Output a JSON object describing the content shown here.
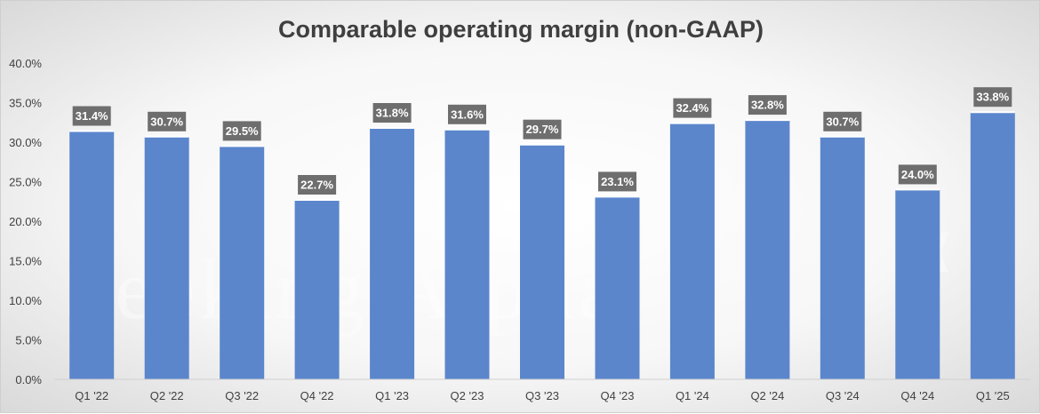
{
  "chart_data": {
    "type": "bar",
    "title": "Comparable operating margin (non-GAAP)",
    "categories": [
      "Q1 '22",
      "Q2 '22",
      "Q3 '22",
      "Q4 '22",
      "Q1 '23",
      "Q2 '23",
      "Q3 '23",
      "Q4 '23",
      "Q1 '24",
      "Q2 '24",
      "Q3 '24",
      "Q4 '24",
      "Q1 '25"
    ],
    "values": [
      31.4,
      30.7,
      29.5,
      22.7,
      31.8,
      31.6,
      29.7,
      23.1,
      32.4,
      32.8,
      30.7,
      24.0,
      33.8
    ],
    "data_labels": [
      "31.4%",
      "30.7%",
      "29.5%",
      "22.7%",
      "31.8%",
      "31.6%",
      "29.7%",
      "23.1%",
      "32.4%",
      "32.8%",
      "30.7%",
      "24.0%",
      "33.8%"
    ],
    "ylim": [
      0,
      40
    ],
    "yticks": [
      0,
      5,
      10,
      15,
      20,
      25,
      30,
      35,
      40
    ],
    "ytick_labels": [
      "0.0%",
      "5.0%",
      "10.0%",
      "15.0%",
      "20.0%",
      "25.0%",
      "30.0%",
      "35.0%",
      "40.0%"
    ],
    "xlabel": "",
    "ylabel": "",
    "grid": false,
    "colors": {
      "bar": "#5b86cc",
      "bar_top": "#ffffff",
      "label_bg": "#6e6e6e"
    }
  },
  "watermark": {
    "text": "Seeking Alpha",
    "symbol": "α"
  }
}
